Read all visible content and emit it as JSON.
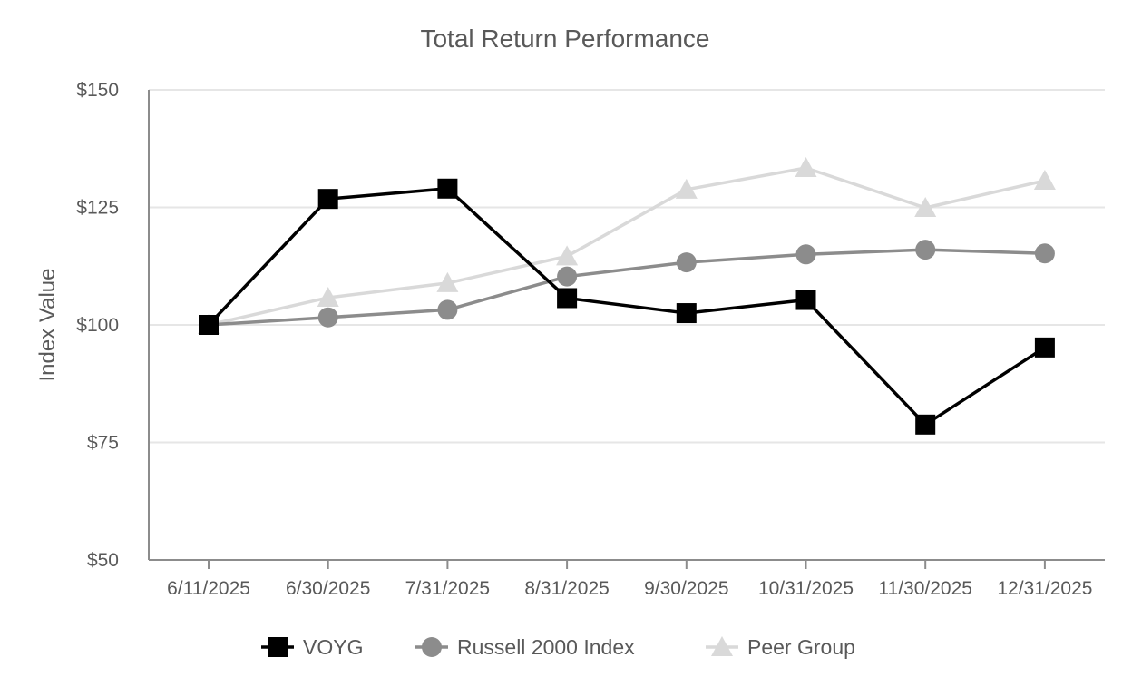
{
  "chart_data": {
    "type": "line",
    "title": "Total Return Performance",
    "xlabel": "",
    "ylabel": "Index Value",
    "categories": [
      "6/11/2025",
      "6/30/2025",
      "7/31/2025",
      "8/31/2025",
      "9/30/2025",
      "10/31/2025",
      "11/30/2025",
      "12/31/2025"
    ],
    "ylim": [
      50,
      150
    ],
    "yticks": [
      50,
      75,
      100,
      125,
      150
    ],
    "ytick_labels": [
      "$50",
      "$75",
      "$100",
      "$125",
      "$150"
    ],
    "grid": true,
    "legend_position": "bottom",
    "series": [
      {
        "name": "VOYG",
        "values": [
          100,
          126.8,
          129,
          105.7,
          102.5,
          105.3,
          78.8,
          95.2
        ],
        "color": "#000000",
        "marker": "square"
      },
      {
        "name": "Russell 2000 Index",
        "values": [
          100,
          101.6,
          103.2,
          110.3,
          113.3,
          115,
          116,
          115.2
        ],
        "color": "#8c8c8c",
        "marker": "circle"
      },
      {
        "name": "Peer Group",
        "values": [
          100,
          105.8,
          108.9,
          114.6,
          128.8,
          133.4,
          124.9,
          130.7
        ],
        "color": "#d9d9d9",
        "marker": "triangle"
      }
    ]
  }
}
